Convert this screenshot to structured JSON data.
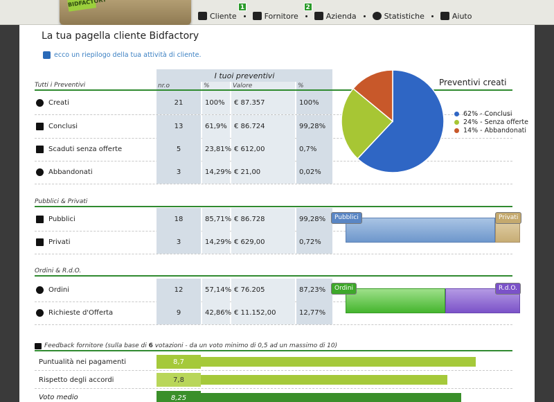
{
  "logo": {
    "text": "BIDFACTORY"
  },
  "nav": {
    "items": [
      {
        "label": "Cliente",
        "badge": "1"
      },
      {
        "label": "Fornitore",
        "badge": "2"
      },
      {
        "label": "Azienda"
      },
      {
        "label": "Statistiche"
      },
      {
        "label": "Aiuto"
      }
    ]
  },
  "page": {
    "title": "La tua pagella cliente  Bidfactory",
    "intro": "ecco un riepilogo della tua attività di cliente."
  },
  "preventivi": {
    "section": "Tutti i Preventivi",
    "group_header": "I tuoi preventivi",
    "columns": [
      "nr.o",
      "%",
      "Valore",
      "%"
    ],
    "rows": [
      {
        "label": "Creati",
        "n": "21",
        "p1": "100%",
        "value": "€ 87.357",
        "p2": "100%",
        "icon": "plus-circle-icon"
      },
      {
        "label": "Conclusi",
        "n": "13",
        "p1": "61,9%",
        "value": "€ 86.724",
        "p2": "99,28%",
        "icon": "flag-icon"
      },
      {
        "label": "Scaduti senza offerte",
        "n": "5",
        "p1": "23,81%",
        "value": "€ 612,00",
        "p2": "0,7%",
        "icon": "broken-link-icon"
      },
      {
        "label": "Abbandonati",
        "n": "3",
        "p1": "14,29%",
        "value": "€ 21,00",
        "p2": "0,02%",
        "icon": "x-circle-icon"
      }
    ]
  },
  "pubblici": {
    "section": "Pubblici & Privati",
    "rows": [
      {
        "label": "Pubblici",
        "n": "18",
        "p1": "85,71%",
        "value": "€ 86.728",
        "p2": "99,28%",
        "icon": "unlocked-icon"
      },
      {
        "label": "Privati",
        "n": "3",
        "p1": "14,29%",
        "value": "€ 629,00",
        "p2": "0,72%",
        "icon": "lock-icon"
      }
    ],
    "bar": {
      "left_label": "Pubblici",
      "right_label": "Privati",
      "left_fraction": 0.8571
    }
  },
  "ordini": {
    "section": "Ordini & R.d.O.",
    "rows": [
      {
        "label": "Ordini",
        "n": "12",
        "p1": "57,14%",
        "value": "€ 76.205",
        "p2": "87,23%",
        "icon": "exclamation-circle-icon"
      },
      {
        "label": "Richieste d'Offerta",
        "n": "9",
        "p1": "42,86%",
        "value": "€ 11.152,00",
        "p2": "12,77%",
        "icon": "question-circle-icon"
      }
    ],
    "bar": {
      "left_label": "Ordini",
      "right_label": "R.d.O.",
      "left_fraction": 0.5714
    }
  },
  "feedback": {
    "section_pre": "Feedback fornitore (sulla base di ",
    "section_count": "6",
    "section_post": " votazioni - da un voto minimo di 0,5 ad un massimo di 10)",
    "rows": [
      {
        "label": "Puntualità nei pagamenti",
        "score": "8,7",
        "fraction": 0.87
      },
      {
        "label": "Rispetto degli accordi",
        "score": "7,8",
        "fraction": 0.78
      },
      {
        "label": "Voto medio",
        "score": "8,25",
        "fraction": 0.825
      }
    ]
  },
  "chart_data": {
    "type": "pie",
    "title": "Preventivi creati",
    "categories": [
      "Conclusi",
      "Senza offerte",
      "Abbandonati"
    ],
    "values": [
      62,
      24,
      14
    ],
    "legend": [
      "62% - Conclusi",
      "24% - Senza offerte",
      "14% - Abbandonati"
    ],
    "colors": [
      "#2f66c4",
      "#a7c634",
      "#c8582a"
    ],
    "legend_position": "right"
  }
}
